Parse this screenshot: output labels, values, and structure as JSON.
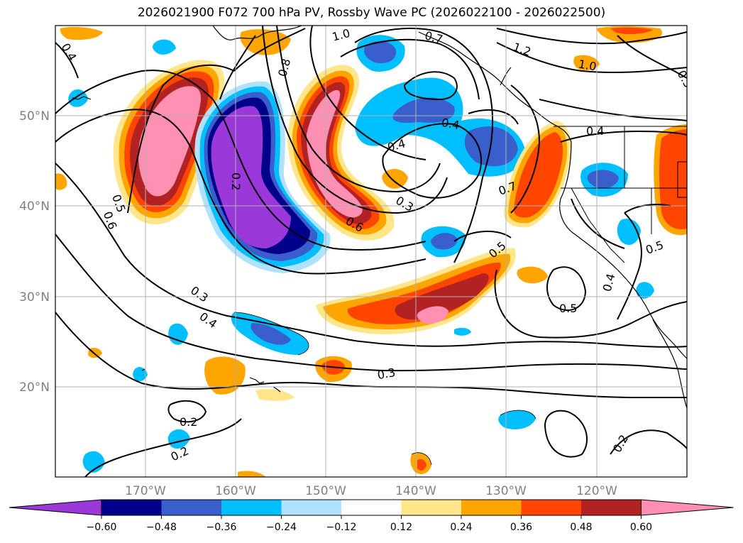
{
  "title": "2026021900 F072 700 hPa PV, Rossby Wave PC (2026022100 - 2026022500)",
  "lon_labels": [
    "170°W",
    "160°W",
    "150°W",
    "140°W",
    "130°W",
    "120°W"
  ],
  "lat_labels": [
    "50°N",
    "40°N",
    "30°N",
    "20°N"
  ],
  "colorbar": {
    "tick_labels": [
      "−0.60",
      "−0.48",
      "−0.36",
      "−0.24",
      "−0.12",
      "0.12",
      "0.24",
      "0.36",
      "0.48",
      "0.60"
    ],
    "colors": [
      "#9b38d9",
      "#00008b",
      "#3a5fcd",
      "#00bfff",
      "#b0e2ff",
      "#ffffff",
      "#ffe68a",
      "#ffa500",
      "#ff4500",
      "#b22222",
      "#ff8fb3"
    ]
  },
  "contour_labels": [
    {
      "text": "0.4"
    },
    {
      "text": "1.0"
    },
    {
      "text": "0.8"
    },
    {
      "text": "0.7"
    },
    {
      "text": "1.2"
    },
    {
      "text": "1.0"
    },
    {
      "text": "0.5"
    },
    {
      "text": "0.4"
    },
    {
      "text": "0.4"
    },
    {
      "text": "0.2"
    },
    {
      "text": "0.5"
    },
    {
      "text": "0.6"
    },
    {
      "text": "0.3"
    },
    {
      "text": "0.6"
    },
    {
      "text": "0.7"
    },
    {
      "text": "0.5"
    },
    {
      "text": "0.4"
    },
    {
      "text": "0.5"
    },
    {
      "text": "0.3"
    },
    {
      "text": "0.4"
    },
    {
      "text": "0.5"
    },
    {
      "text": "0.3"
    },
    {
      "text": "0.2"
    },
    {
      "text": "0.2"
    },
    {
      "text": "0.2"
    },
    {
      "text": "0.4"
    }
  ]
}
